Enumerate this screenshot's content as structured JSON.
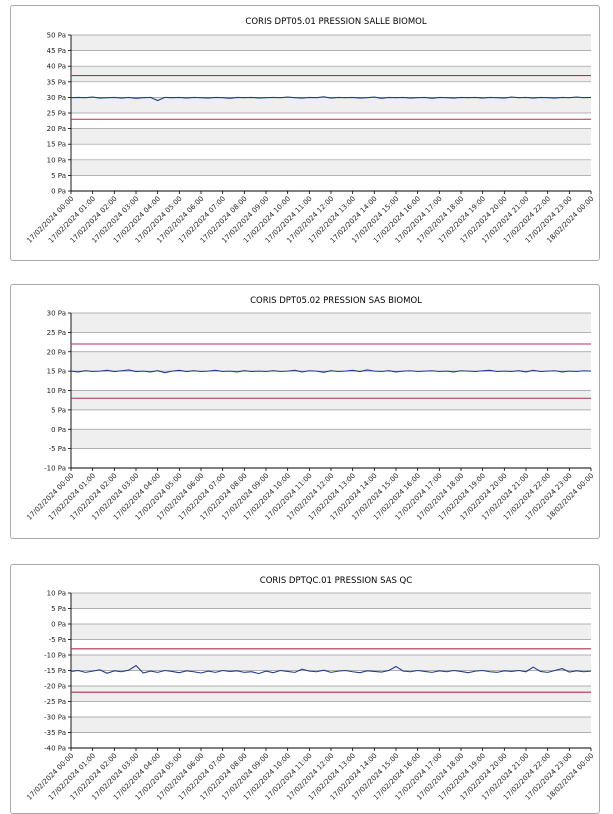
{
  "colors": {
    "series": "#1f3c8f",
    "threshold": "#b03050",
    "band": "#efefef",
    "grid": "#9a9a9a",
    "axis": "#000000",
    "panel_border": "#a9a9a9"
  },
  "chart_data": [
    {
      "type": "line",
      "title": "CORIS DPT05.01 PRESSION SALLE BIOMOL",
      "xlabel": "",
      "ylabel": "",
      "ylim": [
        0,
        50
      ],
      "y_ticks": [
        0,
        5,
        10,
        15,
        20,
        25,
        30,
        35,
        40,
        45,
        50
      ],
      "y_unit": "Pa",
      "x_labels": [
        "17/02/2024 00:00",
        "17/02/2024 01:00",
        "17/02/2024 02:00",
        "17/02/2024 03:00",
        "17/02/2024 04:00",
        "17/02/2024 05:00",
        "17/02/2024 06:00",
        "17/02/2024 07:00",
        "17/02/2024 08:00",
        "17/02/2024 09:00",
        "17/02/2024 10:00",
        "17/02/2024 11:00",
        "17/02/2024 12:00",
        "17/02/2024 13:00",
        "17/02/2024 14:00",
        "17/02/2024 15:00",
        "17/02/2024 16:00",
        "17/02/2024 17:00",
        "17/02/2024 18:00",
        "17/02/2024 19:00",
        "17/02/2024 20:00",
        "17/02/2024 21:00",
        "17/02/2024 22:00",
        "17/02/2024 23:00",
        "18/02/2024 00:00"
      ],
      "thresholds": [
        37,
        23
      ],
      "series": [
        {
          "name": "DPT05.01",
          "values": [
            29.9,
            30.0,
            29.9,
            30.1,
            29.8,
            29.9,
            30.0,
            29.8,
            30.0,
            29.7,
            29.9,
            30.0,
            29.0,
            30.0,
            29.9,
            30.0,
            29.8,
            30.0,
            29.9,
            29.8,
            30.0,
            29.9,
            29.7,
            30.0,
            29.9,
            30.0,
            29.8,
            29.9,
            30.0,
            29.9,
            30.1,
            29.9,
            29.8,
            30.0,
            29.9,
            30.2,
            29.8,
            30.0,
            29.9,
            30.0,
            29.8,
            29.9,
            30.1,
            29.7,
            30.0,
            29.9,
            30.0,
            29.8,
            29.9,
            30.0,
            29.7,
            30.0,
            29.9,
            29.8,
            30.0,
            29.9,
            30.0,
            29.8,
            30.0,
            29.9,
            29.8,
            30.1,
            29.9,
            30.0,
            29.8,
            30.0,
            29.9,
            29.8,
            30.0,
            29.9,
            30.1,
            29.9,
            30.0
          ]
        }
      ]
    },
    {
      "type": "line",
      "title": "CORIS DPT05.02 PRESSION SAS BIOMOL",
      "xlabel": "",
      "ylabel": "",
      "ylim": [
        -10,
        30
      ],
      "y_ticks": [
        -10,
        -5,
        0,
        5,
        10,
        15,
        20,
        25,
        30
      ],
      "y_unit": "Pa",
      "x_labels": [
        "17/02/2024 00:00",
        "17/02/2024 01:00",
        "17/02/2024 02:00",
        "17/02/2024 03:00",
        "17/02/2024 04:00",
        "17/02/2024 05:00",
        "17/02/2024 06:00",
        "17/02/2024 07:00",
        "17/02/2024 08:00",
        "17/02/2024 09:00",
        "17/02/2024 10:00",
        "17/02/2024 11:00",
        "17/02/2024 12:00",
        "17/02/2024 13:00",
        "17/02/2024 14:00",
        "17/02/2024 15:00",
        "17/02/2024 16:00",
        "17/02/2024 17:00",
        "17/02/2024 18:00",
        "17/02/2024 19:00",
        "17/02/2024 20:00",
        "17/02/2024 21:00",
        "17/02/2024 22:00",
        "17/02/2024 23:00",
        "18/02/2024 00:00"
      ],
      "thresholds": [
        22,
        8
      ],
      "series": [
        {
          "name": "DPT05.02",
          "values": [
            15.0,
            14.8,
            15.1,
            14.9,
            15.0,
            15.2,
            14.9,
            15.1,
            15.3,
            14.9,
            15.0,
            14.8,
            15.1,
            14.6,
            15.0,
            15.2,
            14.9,
            15.1,
            14.9,
            15.0,
            15.2,
            14.9,
            15.0,
            14.8,
            15.1,
            14.9,
            15.0,
            14.9,
            15.1,
            14.9,
            15.0,
            15.2,
            14.8,
            15.1,
            15.0,
            14.7,
            15.1,
            14.9,
            15.0,
            15.2,
            14.9,
            15.3,
            15.0,
            14.9,
            15.1,
            14.8,
            15.0,
            15.1,
            14.9,
            15.0,
            15.1,
            14.9,
            15.0,
            14.8,
            15.1,
            15.0,
            14.9,
            15.1,
            15.2,
            14.9,
            15.0,
            14.9,
            15.1,
            14.8,
            15.2,
            14.9,
            15.0,
            15.1,
            14.8,
            15.0,
            14.9,
            15.1,
            15.0
          ]
        }
      ]
    },
    {
      "type": "line",
      "title": "CORIS DPTQC.01 PRESSION SAS QC",
      "xlabel": "",
      "ylabel": "",
      "ylim": [
        -40,
        10
      ],
      "y_ticks": [
        -40,
        -35,
        -30,
        -25,
        -20,
        -15,
        -10,
        -5,
        0,
        5,
        10
      ],
      "y_unit": "Pa",
      "x_labels": [
        "17/02/2024 00:00",
        "17/02/2024 01:00",
        "17/02/2024 02:00",
        "17/02/2024 03:00",
        "17/02/2024 04:00",
        "17/02/2024 05:00",
        "17/02/2024 06:00",
        "17/02/2024 07:00",
        "17/02/2024 08:00",
        "17/02/2024 09:00",
        "17/02/2024 10:00",
        "17/02/2024 11:00",
        "17/02/2024 12:00",
        "17/02/2024 13:00",
        "17/02/2024 14:00",
        "17/02/2024 15:00",
        "17/02/2024 16:00",
        "17/02/2024 17:00",
        "17/02/2024 18:00",
        "17/02/2024 19:00",
        "17/02/2024 20:00",
        "17/02/2024 21:00",
        "17/02/2024 22:00",
        "17/02/2024 23:00",
        "18/02/2024 00:00"
      ],
      "thresholds": [
        -8,
        -22
      ],
      "series": [
        {
          "name": "DPTQC.01",
          "values": [
            -15.3,
            -15.0,
            -15.6,
            -15.2,
            -14.8,
            -15.9,
            -15.1,
            -15.4,
            -14.9,
            -13.4,
            -15.8,
            -15.2,
            -15.6,
            -15.0,
            -15.3,
            -15.7,
            -15.1,
            -15.4,
            -15.8,
            -15.2,
            -15.6,
            -15.0,
            -15.3,
            -15.1,
            -15.6,
            -15.4,
            -16.0,
            -15.2,
            -15.7,
            -15.0,
            -15.3,
            -15.6,
            -14.6,
            -15.2,
            -15.4,
            -14.9,
            -15.6,
            -15.2,
            -15.0,
            -15.4,
            -15.7,
            -15.1,
            -15.3,
            -15.5,
            -15.0,
            -13.7,
            -15.2,
            -15.4,
            -15.0,
            -15.3,
            -15.6,
            -15.1,
            -15.4,
            -15.0,
            -15.3,
            -15.7,
            -15.2,
            -15.0,
            -15.4,
            -15.6,
            -15.1,
            -15.3,
            -15.0,
            -15.4,
            -13.9,
            -15.3,
            -15.6,
            -15.0,
            -14.4,
            -15.5,
            -15.1,
            -15.4,
            -15.2
          ]
        }
      ]
    }
  ]
}
